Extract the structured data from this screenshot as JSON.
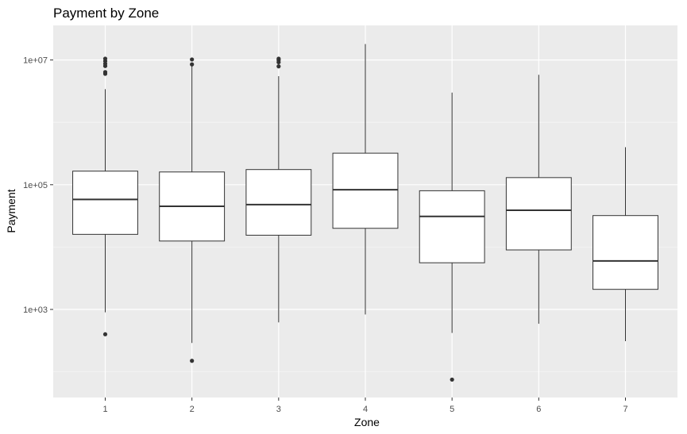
{
  "chart_data": {
    "type": "boxplot",
    "title": "Payment by Zone",
    "xlabel": "Zone",
    "ylabel": "Payment",
    "yscale": "log10",
    "ylim": [
      40,
      30000000
    ],
    "yticks": [
      1000,
      100000,
      10000000
    ],
    "ytick_labels": [
      "1e+03",
      "1e+05",
      "1e+07"
    ],
    "categories": [
      "1",
      "2",
      "3",
      "4",
      "5",
      "6",
      "7"
    ],
    "boxes": [
      {
        "zone": "1",
        "whisker_low": 900,
        "q1": 16000,
        "median": 58000,
        "q3": 165000,
        "whisker_high": 3400000,
        "outliers": [
          400,
          6000000,
          6400000,
          8000000,
          8700000,
          9600000,
          10500000
        ]
      },
      {
        "zone": "2",
        "whisker_low": 290,
        "q1": 12500,
        "median": 45000,
        "q3": 160000,
        "whisker_high": 8500000,
        "outliers": [
          150,
          8500000,
          10200000
        ]
      },
      {
        "zone": "3",
        "whisker_low": 620,
        "q1": 15500,
        "median": 48000,
        "q3": 175000,
        "whisker_high": 5500000,
        "outliers": [
          7900000,
          9200000,
          10000000,
          10500000
        ]
      },
      {
        "zone": "4",
        "whisker_low": 830,
        "q1": 20000,
        "median": 83000,
        "q3": 320000,
        "whisker_high": 18000000,
        "outliers": []
      },
      {
        "zone": "5",
        "whisker_low": 420,
        "q1": 5600,
        "median": 31000,
        "q3": 80000,
        "whisker_high": 3000000,
        "outliers": [
          75
        ]
      },
      {
        "zone": "6",
        "whisker_low": 590,
        "q1": 9000,
        "median": 39000,
        "q3": 130000,
        "whisker_high": 5800000,
        "outliers": []
      },
      {
        "zone": "7",
        "whisker_low": 310,
        "q1": 2100,
        "median": 6000,
        "q3": 32000,
        "whisker_high": 400000,
        "outliers": []
      }
    ],
    "colors": {
      "panel_background": "#ebebeb",
      "grid_major": "#ffffff",
      "grid_minor": "#f5f5f5",
      "box_fill": "#ffffff",
      "box_stroke": "#333333",
      "outlier": "#333333",
      "tick_text": "#4d4d4d"
    }
  }
}
